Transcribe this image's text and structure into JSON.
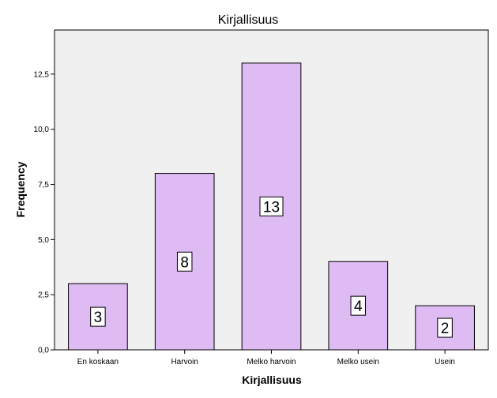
{
  "chart_data": {
    "type": "bar",
    "title": "Kirjallisuus",
    "xlabel": "Kirjallisuus",
    "ylabel": "Frequency",
    "categories": [
      "En koskaan",
      "Harvoin",
      "Melko harvoin",
      "Melko usein",
      "Usein"
    ],
    "values": [
      3,
      8,
      13,
      4,
      2
    ],
    "data_labels": [
      "3",
      "8",
      "13",
      "4",
      "2"
    ],
    "ylim": [
      0,
      14.5
    ],
    "yticks": [
      0,
      2.5,
      5,
      7.5,
      10,
      12.5
    ],
    "ytick_labels": [
      "0,0",
      "2,5",
      "5,0",
      "7,5",
      "10,0",
      "12,5"
    ],
    "grid": false,
    "colors": {
      "bar_fill": "#dfbbf3",
      "bar_stroke": "#000000",
      "plot_background": "#f0f0f0",
      "label_box_fill": "#ffffff"
    }
  }
}
